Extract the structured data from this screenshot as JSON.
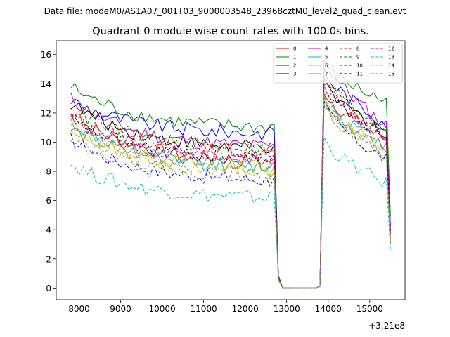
{
  "chart_data": {
    "type": "line",
    "suptitle": "Data file: modeM0/AS1A07_001T03_9000003548_23968cztM0_level2_quad_clean.evt",
    "title": "Quadrant 0 module wise count rates with 100.0s bins.",
    "xlabel": "",
    "ylabel": "",
    "x_offset_label": "+3.21e8",
    "xlim": [
      7450,
      15850
    ],
    "ylim": [
      -0.8,
      16.95
    ],
    "xticks": [
      8000,
      9000,
      10000,
      11000,
      12000,
      13000,
      14000,
      15000
    ],
    "xtick_labels": [
      "8000",
      "9000",
      "10000",
      "11000",
      "12000",
      "13000",
      "14000",
      "15000"
    ],
    "yticks": [
      0,
      2,
      4,
      6,
      8,
      10,
      12,
      14,
      16
    ],
    "ytick_labels": [
      "0",
      "2",
      "4",
      "6",
      "8",
      "10",
      "12",
      "14",
      "16"
    ],
    "grid": false,
    "legend": {
      "location": "top-right",
      "columns": 4
    },
    "x_sampling": {
      "segments": [
        {
          "start": 7800,
          "end": 12700,
          "step": 100
        },
        {
          "start": 12700,
          "end": 13800,
          "values": [
            12800,
            12900,
            13000,
            13100,
            13200,
            13300,
            13400,
            13500,
            13600,
            13700,
            13800
          ]
        },
        {
          "start": 13900,
          "end": 15500,
          "step": 100
        }
      ],
      "note": "Rates drop to ~0 during the gap from ~12750 to ~13850 and recover afterwards."
    },
    "series": [
      {
        "name": "0",
        "color": "#ff0000",
        "dash": "solid",
        "start": 11.9,
        "plateau_end": 8.7,
        "gap_level": 0.02,
        "post_start": 13.6,
        "post_end": 10.0,
        "final": 3.5
      },
      {
        "name": "1",
        "color": "#008000",
        "dash": "solid",
        "start": 13.8,
        "plateau_end": 11.0,
        "gap_level": 0.02,
        "post_start": 15.5,
        "post_end": 12.6,
        "final": 4.9
      },
      {
        "name": "2",
        "color": "#0000ff",
        "dash": "solid",
        "start": 12.9,
        "plateau_end": 10.6,
        "gap_level": 0.02,
        "post_start": 14.9,
        "post_end": 11.2,
        "final": 4.2
      },
      {
        "name": "3",
        "color": "#000000",
        "dash": "solid",
        "start": 12.7,
        "plateau_end": 9.6,
        "gap_level": 0.02,
        "post_start": 13.9,
        "post_end": 10.7,
        "final": 3.9
      },
      {
        "name": "4",
        "color": "#bf00bf",
        "dash": "solid",
        "start": 13.0,
        "plateau_end": 9.7,
        "gap_level": 0.02,
        "post_start": 15.9,
        "post_end": 10.9,
        "final": 4.3
      },
      {
        "name": "5",
        "color": "#00bfbf",
        "dash": "solid",
        "start": 11.4,
        "plateau_end": 8.3,
        "gap_level": 0.02,
        "post_start": 13.2,
        "post_end": 9.5,
        "final": 3.0
      },
      {
        "name": "6",
        "color": "#bfbf00",
        "dash": "solid",
        "start": 11.1,
        "plateau_end": 8.2,
        "gap_level": 0.02,
        "post_start": 12.9,
        "post_end": 9.3,
        "final": 3.1
      },
      {
        "name": "7",
        "color": "#808080",
        "dash": "solid",
        "start": 10.9,
        "plateau_end": 8.5,
        "gap_level": 0.02,
        "post_start": 13.0,
        "post_end": 9.4,
        "final": 3.2
      },
      {
        "name": "8",
        "color": "#ff0000",
        "dash": "dashed",
        "start": 12.0,
        "plateau_end": 9.3,
        "gap_level": 0.02,
        "post_start": 14.2,
        "post_end": 10.3,
        "final": 3.6
      },
      {
        "name": "9",
        "color": "#008000",
        "dash": "dashed",
        "start": 12.3,
        "plateau_end": 9.6,
        "gap_level": 0.02,
        "post_start": 14.6,
        "post_end": 10.8,
        "final": 3.7
      },
      {
        "name": "10",
        "color": "#0000ff",
        "dash": "dashed",
        "start": 10.2,
        "plateau_end": 7.4,
        "gap_level": 0.02,
        "post_start": 12.5,
        "post_end": 8.6,
        "final": 3.4
      },
      {
        "name": "11",
        "color": "#000000",
        "dash": "dashed",
        "start": 11.5,
        "plateau_end": 8.9,
        "gap_level": 0.02,
        "post_start": 13.7,
        "post_end": 10.4,
        "final": 3.8
      },
      {
        "name": "12",
        "color": "#bf00bf",
        "dash": "dashed",
        "start": 11.8,
        "plateau_end": 8.9,
        "gap_level": 0.02,
        "post_start": 14.1,
        "post_end": 10.1,
        "final": 3.9
      },
      {
        "name": "13",
        "color": "#00bfbf",
        "dash": "dashed",
        "start": 8.5,
        "plateau_end": 6.2,
        "gap_level": 0.02,
        "post_start": 10.2,
        "post_end": 7.0,
        "final": 2.6
      },
      {
        "name": "14",
        "color": "#bfbf00",
        "dash": "dashed",
        "start": 11.0,
        "plateau_end": 7.8,
        "gap_level": 0.02,
        "post_start": 13.0,
        "post_end": 9.1,
        "final": 3.2
      },
      {
        "name": "15",
        "color": "#808080",
        "dash": "dashed",
        "start": 10.5,
        "plateau_end": 7.7,
        "gap_level": 0.02,
        "post_start": 12.7,
        "post_end": 8.9,
        "final": 3.1
      }
    ]
  }
}
